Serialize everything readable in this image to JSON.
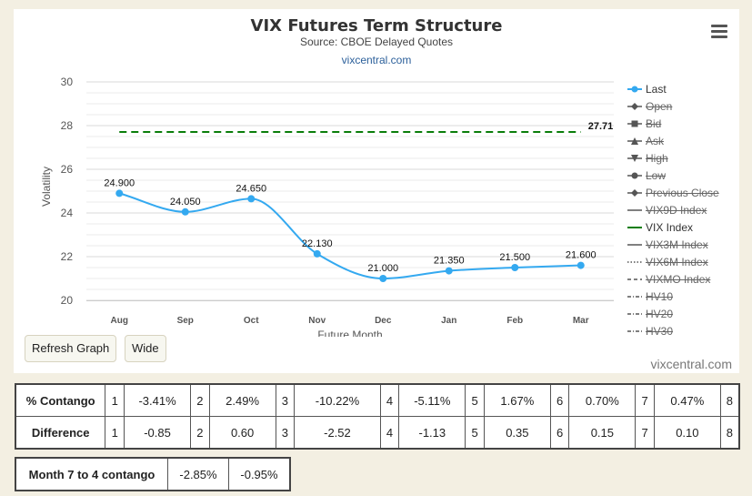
{
  "header": {
    "title": "VIX Futures Term Structure",
    "subtitle": "Source: CBOE Delayed Quotes",
    "link": "vixcentral.com"
  },
  "chart_data": {
    "type": "line",
    "title": "VIX Futures Term Structure",
    "subtitle": "Source: CBOE Delayed Quotes",
    "xlabel": "Future Month",
    "ylabel": "Volatility",
    "categories": [
      "Aug",
      "Sep",
      "Oct",
      "Nov",
      "Dec",
      "Jan",
      "Feb",
      "Mar"
    ],
    "ylim": [
      20,
      30
    ],
    "yticks": [
      20,
      22,
      24,
      26,
      28,
      30
    ],
    "grid": true,
    "legend_position": "right",
    "series": [
      {
        "name": "Last",
        "color": "#34a9f0",
        "values": [
          24.9,
          24.05,
          24.65,
          22.13,
          21.0,
          21.35,
          21.5,
          21.6
        ],
        "labels": [
          "24.900",
          "24.050",
          "24.650",
          "22.130",
          "21.000",
          "21.350",
          "21.500",
          "21.600"
        ]
      },
      {
        "name": "VIX Index",
        "color": "#0a7d0a",
        "value": 27.71,
        "label": "27.71"
      }
    ]
  },
  "legend": [
    {
      "label": "Last",
      "marker": "circle",
      "line": "solid",
      "color": "#34a9f0",
      "active": true
    },
    {
      "label": "Open",
      "marker": "diamond",
      "line": "solid",
      "color": "#555555",
      "active": false
    },
    {
      "label": "Bid",
      "marker": "square",
      "line": "solid",
      "color": "#555555",
      "active": false
    },
    {
      "label": "Ask",
      "marker": "triangle",
      "line": "solid",
      "color": "#555555",
      "active": false
    },
    {
      "label": "High",
      "marker": "triangle-down",
      "line": "solid",
      "color": "#555555",
      "active": false
    },
    {
      "label": "Low",
      "marker": "circle",
      "line": "solid",
      "color": "#555555",
      "active": false
    },
    {
      "label": "Previous Close",
      "marker": "diamond",
      "line": "solid",
      "color": "#555555",
      "active": false
    },
    {
      "label": "VIX9D Index",
      "marker": "none",
      "line": "solid",
      "color": "#555555",
      "active": false
    },
    {
      "label": "VIX Index",
      "marker": "none",
      "line": "solid",
      "color": "#0a7d0a",
      "active": true
    },
    {
      "label": "VIX3M Index",
      "marker": "none",
      "line": "solid",
      "color": "#555555",
      "active": false
    },
    {
      "label": "VIX6M Index",
      "marker": "none",
      "line": "dotted",
      "color": "#555555",
      "active": false
    },
    {
      "label": "VIXMO Index",
      "marker": "none",
      "line": "dashed",
      "color": "#555555",
      "active": false
    },
    {
      "label": "HV10",
      "marker": "none",
      "line": "dashdot",
      "color": "#555555",
      "active": false
    },
    {
      "label": "HV20",
      "marker": "none",
      "line": "dashdot",
      "color": "#555555",
      "active": false
    },
    {
      "label": "HV30",
      "marker": "none",
      "line": "dashdot",
      "color": "#555555",
      "active": false
    }
  ],
  "buttons": {
    "refresh": "Refresh Graph",
    "wide": "Wide"
  },
  "watermark": "vixcentral.com",
  "contango_table": {
    "row1_label": "% Contango",
    "row1": [
      {
        "n": "1",
        "v": "-3.41%"
      },
      {
        "n": "2",
        "v": "2.49%"
      },
      {
        "n": "3",
        "v": "-10.22%"
      },
      {
        "n": "4",
        "v": "-5.11%"
      },
      {
        "n": "5",
        "v": "1.67%"
      },
      {
        "n": "6",
        "v": "0.70%"
      },
      {
        "n": "7",
        "v": "0.47%"
      },
      {
        "n": "8",
        "v": ""
      }
    ],
    "row2_label": "Difference",
    "row2": [
      {
        "n": "1",
        "v": "-0.85"
      },
      {
        "n": "2",
        "v": "0.60"
      },
      {
        "n": "3",
        "v": "-2.52"
      },
      {
        "n": "4",
        "v": "-1.13"
      },
      {
        "n": "5",
        "v": "0.35"
      },
      {
        "n": "6",
        "v": "0.15"
      },
      {
        "n": "7",
        "v": "0.10"
      },
      {
        "n": "8",
        "v": ""
      }
    ]
  },
  "month_table": {
    "label": "Month 7 to 4 contango",
    "values": [
      "-2.85%",
      "-0.95%"
    ]
  }
}
